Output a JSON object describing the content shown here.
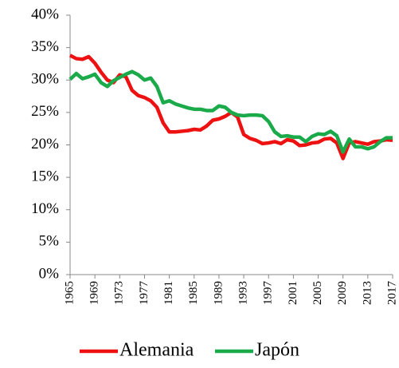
{
  "chart_data": {
    "type": "line",
    "x": [
      1965,
      1966,
      1967,
      1968,
      1969,
      1970,
      1971,
      1972,
      1973,
      1974,
      1975,
      1976,
      1977,
      1978,
      1979,
      1980,
      1981,
      1982,
      1983,
      1984,
      1985,
      1986,
      1987,
      1988,
      1989,
      1990,
      1991,
      1992,
      1993,
      1994,
      1995,
      1996,
      1997,
      1998,
      1999,
      2000,
      2001,
      2002,
      2003,
      2004,
      2005,
      2006,
      2007,
      2008,
      2009,
      2010,
      2011,
      2012,
      2013,
      2014,
      2015,
      2016,
      2017
    ],
    "series": [
      {
        "name": "Alemania",
        "color": "#ee1111",
        "values": [
          33.8,
          33.3,
          33.2,
          33.6,
          32.6,
          31.2,
          30.0,
          29.6,
          30.8,
          30.5,
          28.4,
          27.6,
          27.3,
          26.8,
          25.8,
          23.4,
          22.0,
          22.0,
          22.1,
          22.2,
          22.4,
          22.3,
          22.9,
          23.8,
          24.0,
          24.4,
          25.0,
          24.3,
          21.6,
          21.0,
          20.7,
          20.2,
          20.3,
          20.5,
          20.2,
          20.8,
          20.6,
          19.9,
          20.0,
          20.3,
          20.4,
          20.9,
          21.0,
          20.3,
          17.9,
          20.3,
          20.5,
          20.3,
          20.1,
          20.5,
          20.6,
          20.8,
          20.7
        ]
      },
      {
        "name": "Japón",
        "color": "#1aaa4a",
        "values": [
          30.1,
          31.0,
          30.2,
          30.5,
          30.9,
          29.6,
          29.0,
          29.9,
          30.4,
          30.9,
          31.3,
          30.8,
          30.0,
          30.3,
          29.0,
          26.5,
          26.8,
          26.3,
          26.0,
          25.7,
          25.5,
          25.5,
          25.3,
          25.3,
          26.0,
          25.8,
          25.0,
          24.6,
          24.5,
          24.6,
          24.6,
          24.5,
          23.6,
          22.0,
          21.3,
          21.4,
          21.2,
          21.2,
          20.5,
          21.3,
          21.7,
          21.6,
          22.1,
          21.4,
          18.9,
          20.9,
          19.7,
          19.7,
          19.4,
          19.7,
          20.5,
          21.1,
          21.1
        ]
      }
    ],
    "xlim": [
      1965,
      2017
    ],
    "xticks": [
      1965,
      1969,
      1973,
      1977,
      1981,
      1985,
      1989,
      1993,
      1997,
      2001,
      2005,
      2009,
      2013,
      2017
    ],
    "ylim": [
      0,
      40
    ],
    "yticks": [
      {
        "value": 0,
        "label": "0%"
      },
      {
        "value": 5,
        "label": "5%"
      },
      {
        "value": 10,
        "label": "10%"
      },
      {
        "value": 15,
        "label": "15%"
      },
      {
        "value": 20,
        "label": "20%"
      },
      {
        "value": 25,
        "label": "25%"
      },
      {
        "value": 30,
        "label": "30%"
      },
      {
        "value": 35,
        "label": "35%"
      },
      {
        "value": 40,
        "label": "40%"
      }
    ],
    "grid": false,
    "legend": "bottom"
  }
}
